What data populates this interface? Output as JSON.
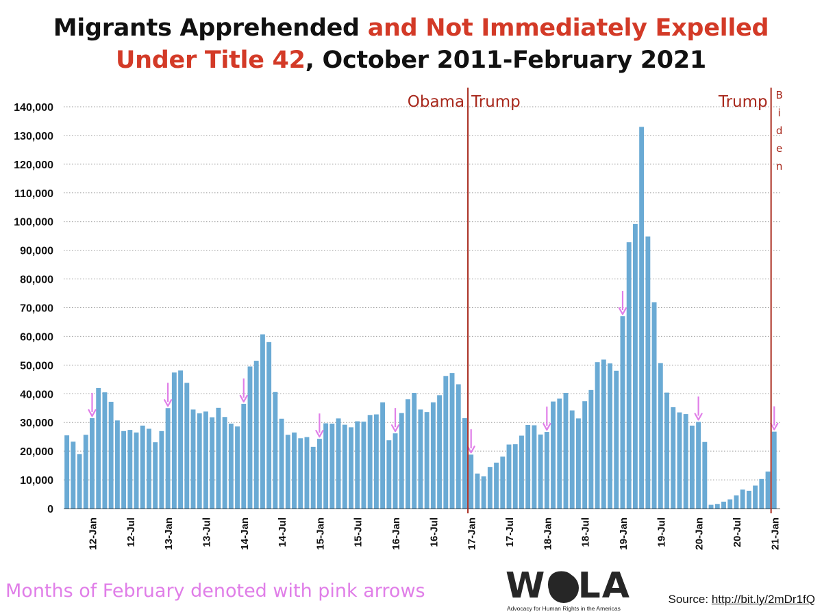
{
  "header": {
    "title_black_1": "Migrants Apprehended ",
    "title_red_1": "and Not Immediately Expelled",
    "title_red_2": "Under Title 42",
    "title_black_2": ", October 2011-February 2021"
  },
  "footnote": "Months of February denoted with pink arrows",
  "logo": {
    "name": "WOLA",
    "tagline": "Advocacy for Human Rights in the Americas"
  },
  "source": {
    "label": "Source: ",
    "link": "http://bit.ly/2mDr1fQ"
  },
  "colors": {
    "bar": "#6aaad4",
    "divider": "#a8291d",
    "arrow": "#e07ee8",
    "highlight": "#d33a27"
  },
  "chart_data": {
    "type": "bar",
    "title": "Migrants Apprehended and Not Immediately Expelled Under Title 42, October 2011-February 2021",
    "xlabel": "",
    "ylabel": "",
    "ylim": [
      0,
      140000
    ],
    "grid": true,
    "y_ticks": [
      "0",
      "10,000",
      "20,000",
      "30,000",
      "40,000",
      "50,000",
      "60,000",
      "70,000",
      "80,000",
      "90,000",
      "100,000",
      "110,000",
      "120,000",
      "130,000",
      "140,000"
    ],
    "x_tick_labels": [
      {
        "label": "12-Jan",
        "index": 4
      },
      {
        "label": "12-Jul",
        "index": 10
      },
      {
        "label": "13-Jan",
        "index": 16
      },
      {
        "label": "13-Jul",
        "index": 22
      },
      {
        "label": "14-Jan",
        "index": 28
      },
      {
        "label": "14-Jul",
        "index": 34
      },
      {
        "label": "15-Jan",
        "index": 40
      },
      {
        "label": "15-Jul",
        "index": 46
      },
      {
        "label": "16-Jan",
        "index": 52
      },
      {
        "label": "16-Jul",
        "index": 58
      },
      {
        "label": "17-Jan",
        "index": 64
      },
      {
        "label": "17-Jul",
        "index": 70
      },
      {
        "label": "18-Jan",
        "index": 76
      },
      {
        "label": "18-Jul",
        "index": 82
      },
      {
        "label": "19-Jan",
        "index": 88
      },
      {
        "label": "19-Jul",
        "index": 94
      },
      {
        "label": "20-Jan",
        "index": 100
      },
      {
        "label": "20-Jul",
        "index": 106
      },
      {
        "label": "21-Jan",
        "index": 112
      }
    ],
    "values": [
      25500,
      23300,
      19000,
      25700,
      31500,
      42000,
      40500,
      37200,
      30700,
      27000,
      27400,
      26500,
      28900,
      27800,
      23100,
      27000,
      35000,
      47400,
      48100,
      43800,
      34500,
      33200,
      33800,
      31800,
      35100,
      31900,
      29600,
      28600,
      36500,
      49500,
      51500,
      60700,
      58000,
      40600,
      31300,
      25700,
      26500,
      24500,
      24900,
      21500,
      24300,
      29700,
      29600,
      31400,
      29200,
      28300,
      30400,
      30300,
      32600,
      32800,
      37000,
      23800,
      26200,
      33300,
      38100,
      40300,
      34500,
      33600,
      37000,
      39500,
      46200,
      47200,
      43300,
      31500,
      18800,
      12200,
      11200,
      14500,
      16000,
      18100,
      22300,
      22400,
      25400,
      29100,
      29000,
      25800,
      26700,
      37300,
      38300,
      40300,
      34200,
      31400,
      37400,
      41300,
      51000,
      51900,
      50600,
      48000,
      67000,
      92800,
      99200,
      133000,
      94800,
      71900,
      50700,
      40400,
      35300,
      33500,
      32900,
      28900,
      30200,
      23200,
      1300,
      1600,
      2400,
      3200,
      4600,
      6600,
      6200,
      8000,
      10300,
      12900,
      26800
    ],
    "february_arrows": [
      4,
      16,
      28,
      40,
      52,
      64,
      76,
      88,
      100,
      112
    ],
    "dividers": [
      {
        "after_index": 63,
        "left_label": "Obama",
        "right_label": "Trump"
      },
      {
        "after_index": 111,
        "left_label": "Trump",
        "right_label": "Biden"
      }
    ]
  }
}
